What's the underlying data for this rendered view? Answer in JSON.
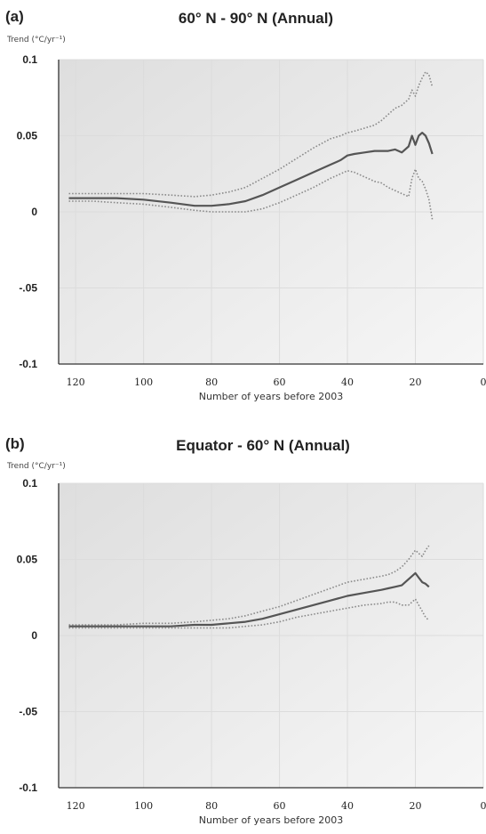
{
  "panels": [
    {
      "panel_label": "(a)"
    },
    {
      "panel_label": "(b)"
    }
  ],
  "chart_data": [
    {
      "type": "line",
      "title": "60° N - 90° N (Annual)",
      "ylabel": "Trend (°C/yr⁻¹)",
      "xlabel": "Number of years before 2003",
      "xlim": [
        125,
        0
      ],
      "ylim": [
        -0.1,
        0.1
      ],
      "x_ticks": [
        120,
        100,
        80,
        60,
        40,
        20,
        0
      ],
      "y_ticks": [
        0.1,
        0.05,
        0,
        -0.05,
        -0.1
      ],
      "y_tick_labels": [
        "0.1",
        "0.05",
        "0",
        "-.05",
        "-0.1"
      ],
      "grid": true,
      "series": [
        {
          "role": "upper bound",
          "style": "dotted",
          "x": [
            122,
            115,
            108,
            100,
            92,
            85,
            80,
            75,
            70,
            65,
            60,
            55,
            50,
            45,
            42,
            40,
            38,
            35,
            32,
            30,
            28,
            26,
            24,
            22,
            21,
            20,
            19,
            18,
            17,
            16,
            15
          ],
          "values": [
            0.012,
            0.012,
            0.012,
            0.012,
            0.011,
            0.01,
            0.011,
            0.013,
            0.016,
            0.022,
            0.028,
            0.035,
            0.042,
            0.048,
            0.05,
            0.052,
            0.053,
            0.055,
            0.057,
            0.06,
            0.064,
            0.068,
            0.07,
            0.074,
            0.08,
            0.076,
            0.083,
            0.088,
            0.092,
            0.09,
            0.082
          ]
        },
        {
          "role": "trend",
          "style": "solid",
          "x": [
            122,
            115,
            108,
            100,
            92,
            85,
            80,
            75,
            70,
            65,
            60,
            55,
            50,
            45,
            42,
            40,
            38,
            35,
            32,
            30,
            28,
            26,
            24,
            22,
            21,
            20,
            19,
            18,
            17,
            16,
            15
          ],
          "values": [
            0.009,
            0.009,
            0.009,
            0.008,
            0.006,
            0.004,
            0.004,
            0.005,
            0.007,
            0.011,
            0.016,
            0.021,
            0.026,
            0.031,
            0.034,
            0.037,
            0.038,
            0.039,
            0.04,
            0.04,
            0.04,
            0.041,
            0.039,
            0.043,
            0.05,
            0.044,
            0.05,
            0.052,
            0.05,
            0.045,
            0.038
          ]
        },
        {
          "role": "lower bound",
          "style": "dotted",
          "x": [
            122,
            115,
            108,
            100,
            92,
            85,
            80,
            75,
            70,
            65,
            60,
            55,
            50,
            45,
            42,
            40,
            38,
            35,
            32,
            30,
            28,
            26,
            24,
            22,
            21,
            20,
            19,
            18,
            17,
            16,
            15
          ],
          "values": [
            0.007,
            0.007,
            0.006,
            0.005,
            0.003,
            0.001,
            0.0,
            0.0,
            0.0,
            0.002,
            0.006,
            0.011,
            0.016,
            0.022,
            0.025,
            0.027,
            0.026,
            0.023,
            0.02,
            0.019,
            0.016,
            0.014,
            0.012,
            0.01,
            0.022,
            0.028,
            0.022,
            0.02,
            0.015,
            0.008,
            -0.005
          ]
        }
      ]
    },
    {
      "type": "line",
      "title": "Equator - 60° N (Annual)",
      "ylabel": "Trend (°C/yr⁻¹)",
      "xlabel": "Number of years before 2003",
      "xlim": [
        125,
        0
      ],
      "ylim": [
        -0.1,
        0.1
      ],
      "x_ticks": [
        120,
        100,
        80,
        60,
        40,
        20,
        0
      ],
      "y_ticks": [
        0.1,
        0.05,
        0,
        -0.05,
        -0.1
      ],
      "y_tick_labels": [
        "0.1",
        "0.05",
        "0",
        "-.05",
        "-0.1"
      ],
      "grid": true,
      "series": [
        {
          "role": "upper bound",
          "style": "dotted",
          "x": [
            122,
            115,
            108,
            100,
            92,
            85,
            80,
            75,
            70,
            65,
            60,
            55,
            50,
            45,
            40,
            35,
            30,
            28,
            26,
            24,
            22,
            20,
            19,
            18,
            17,
            16
          ],
          "values": [
            0.007,
            0.007,
            0.007,
            0.008,
            0.008,
            0.009,
            0.01,
            0.011,
            0.013,
            0.016,
            0.019,
            0.023,
            0.027,
            0.031,
            0.035,
            0.037,
            0.039,
            0.04,
            0.042,
            0.045,
            0.05,
            0.056,
            0.054,
            0.052,
            0.056,
            0.059
          ]
        },
        {
          "role": "trend",
          "style": "solid",
          "x": [
            122,
            115,
            108,
            100,
            92,
            85,
            80,
            75,
            70,
            65,
            60,
            55,
            50,
            45,
            40,
            35,
            30,
            28,
            26,
            24,
            22,
            20,
            19,
            18,
            17,
            16
          ],
          "values": [
            0.006,
            0.006,
            0.006,
            0.006,
            0.006,
            0.007,
            0.007,
            0.008,
            0.009,
            0.011,
            0.014,
            0.017,
            0.02,
            0.023,
            0.026,
            0.028,
            0.03,
            0.031,
            0.032,
            0.033,
            0.037,
            0.041,
            0.038,
            0.035,
            0.034,
            0.032
          ]
        },
        {
          "role": "lower bound",
          "style": "dotted",
          "x": [
            122,
            115,
            108,
            100,
            92,
            85,
            80,
            75,
            70,
            65,
            60,
            55,
            50,
            45,
            40,
            35,
            30,
            28,
            26,
            24,
            22,
            20,
            19,
            18,
            17,
            16
          ],
          "values": [
            0.005,
            0.005,
            0.005,
            0.005,
            0.005,
            0.005,
            0.005,
            0.005,
            0.006,
            0.007,
            0.009,
            0.012,
            0.014,
            0.016,
            0.018,
            0.02,
            0.021,
            0.022,
            0.022,
            0.02,
            0.02,
            0.024,
            0.02,
            0.016,
            0.012,
            0.01
          ]
        }
      ]
    }
  ],
  "colors": {
    "plot_background": "#eeeeee",
    "grid": "#dcdcdc",
    "axis": "#333333",
    "trend_line": "#555555",
    "bound_line": "#8a8a8a",
    "text": "#222222"
  }
}
